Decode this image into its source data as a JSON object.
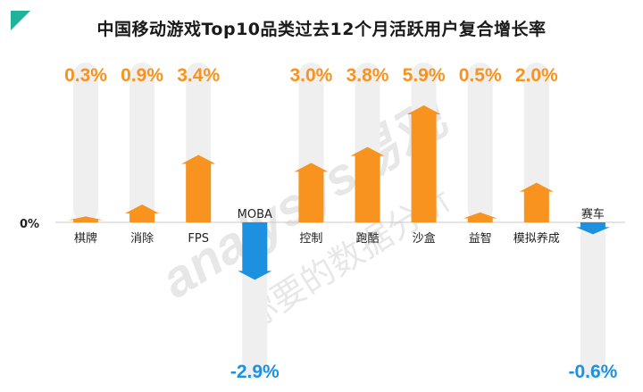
{
  "chart_data": {
    "type": "bar",
    "title": "中国移动游戏Top10品类过去12个月活跃用户复合增长率",
    "zero_label": "0%",
    "categories": [
      "棋牌",
      "消除",
      "FPS",
      "MOBA",
      "控制",
      "跑酷",
      "沙盒",
      "益智",
      "模拟养成",
      "赛车"
    ],
    "values": [
      0.3,
      0.9,
      3.4,
      -2.9,
      3.0,
      3.8,
      5.9,
      0.5,
      2.0,
      -0.6
    ],
    "value_labels": [
      "0.3%",
      "0.9%",
      "3.4%",
      "-2.9%",
      "3.0%",
      "3.8%",
      "5.9%",
      "0.5%",
      "2.0%",
      "-0.6%"
    ],
    "colors": {
      "positive": "#f7931e",
      "negative": "#1e90e0",
      "track": "#efefef",
      "axis": "#c8c8c8"
    },
    "watermark": {
      "brand": "analysys易观",
      "slogan": "你要的数据分析"
    }
  }
}
